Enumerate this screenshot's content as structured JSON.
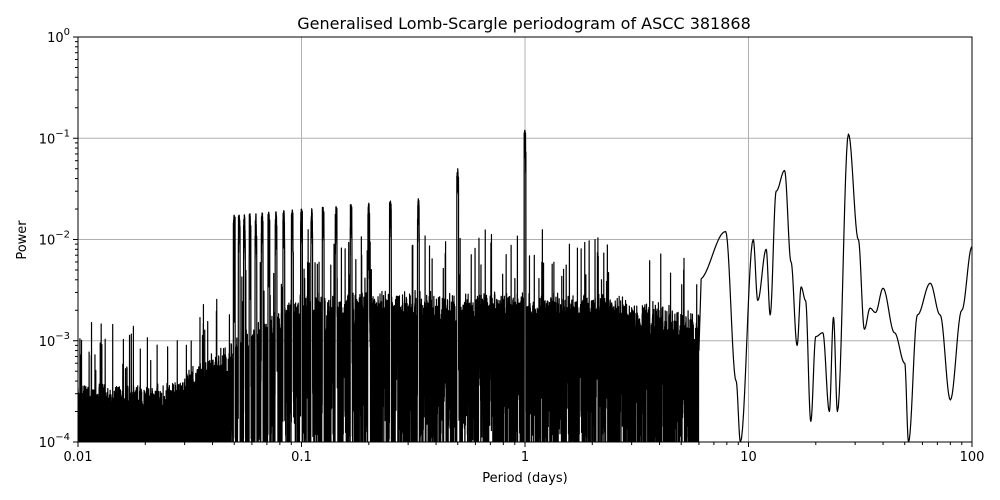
{
  "chart_data": {
    "type": "line",
    "title": "Generalised Lomb-Scargle periodogram of ASCC 381868",
    "xlabel": "Period (days)",
    "ylabel": "Power",
    "xscale": "log",
    "yscale": "log",
    "xlim": [
      0.01,
      100
    ],
    "ylim": [
      0.0001,
      1
    ],
    "grid": true,
    "x_ticks": [
      "0.01",
      "0.1",
      "1",
      "10",
      "100"
    ],
    "y_ticks": [
      {
        "base": "10",
        "exp": "0"
      },
      {
        "base": "10",
        "exp": "−1"
      },
      {
        "base": "10",
        "exp": "−2"
      },
      {
        "base": "10",
        "exp": "−3"
      },
      {
        "base": "10",
        "exp": "−4"
      }
    ],
    "line_color": "#000000",
    "grid_color": "#b0b0b0",
    "notable_peaks": [
      {
        "period": 1.0,
        "power": 0.12
      },
      {
        "period": 28.0,
        "power": 0.11
      },
      {
        "period": 14.5,
        "power": 0.048
      },
      {
        "period": 0.5,
        "power": 0.05
      },
      {
        "period": 0.333,
        "power": 0.025
      },
      {
        "period": 0.1,
        "power": 0.024
      }
    ],
    "smooth_tail": {
      "x": [
        6.0,
        7.9,
        8.8,
        9.2,
        10.5,
        11.0,
        12.0,
        12.5,
        13.3,
        14.5,
        15.5,
        16.5,
        17.2,
        18.0,
        19.0,
        20.0,
        21.5,
        23.0,
        24.0,
        25.0,
        28.0,
        31.0,
        33.0,
        35.0,
        37.0,
        40.0,
        45.0,
        50.0,
        52.0,
        57.0,
        65.0,
        72.0,
        80.0,
        90.0,
        100.0
      ],
      "y": [
        0.004,
        0.012,
        0.0004,
        0.0001,
        0.01,
        0.0025,
        0.008,
        0.0018,
        0.03,
        0.048,
        0.006,
        0.0009,
        0.0034,
        0.0025,
        0.00016,
        0.0011,
        0.0012,
        0.0002,
        0.0017,
        0.0002,
        0.11,
        0.01,
        0.0013,
        0.0021,
        0.0019,
        0.0033,
        0.0012,
        0.0006,
        0.0001,
        0.0018,
        0.0037,
        0.0018,
        0.00026,
        0.002,
        0.0085
      ]
    }
  }
}
